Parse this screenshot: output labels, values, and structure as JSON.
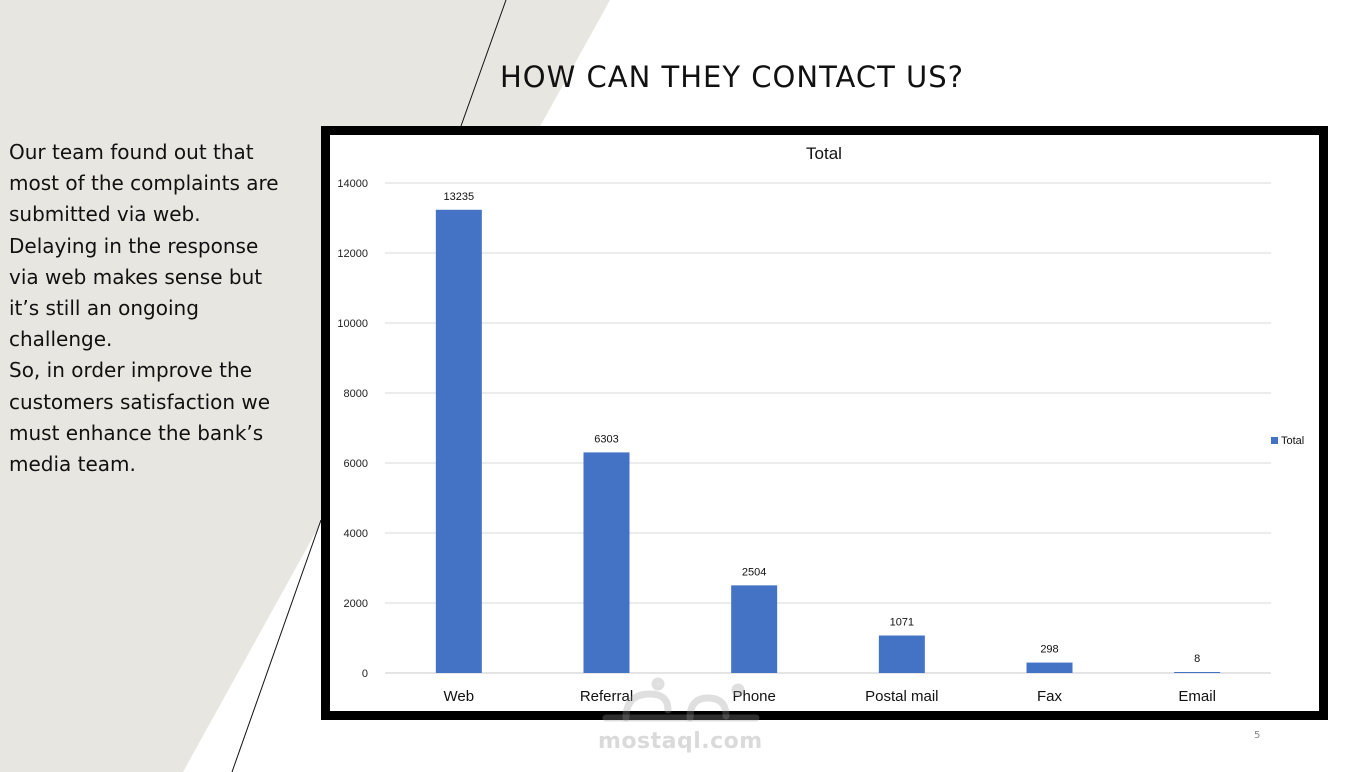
{
  "slide": {
    "title": "HOW CAN THEY CONTACT US?",
    "body_lines": [
      "Our team found out that most of the complaints are submitted via web. Delaying in the response via web makes sense but it’s still an ongoing challenge.",
      "So, in order improve the customers satisfaction we must enhance the bank’s media team."
    ],
    "page_number": "5",
    "watermark": "mostaql.com"
  },
  "colors": {
    "bar": "#4472C4",
    "background_shape": "#E8E6E0",
    "frame": "#000000"
  },
  "chart_data": {
    "type": "bar",
    "title": "Total",
    "categories": [
      "Web",
      "Referral",
      "Phone",
      "Postal mail",
      "Fax",
      "Email"
    ],
    "series": [
      {
        "name": "Total",
        "values": [
          13235,
          6303,
          2504,
          1071,
          298,
          8
        ]
      }
    ],
    "ylim": [
      0,
      14000
    ],
    "yticks": [
      0,
      2000,
      4000,
      6000,
      8000,
      10000,
      12000,
      14000
    ],
    "xlabel": "",
    "ylabel": "",
    "grid": true,
    "legend": "right"
  }
}
